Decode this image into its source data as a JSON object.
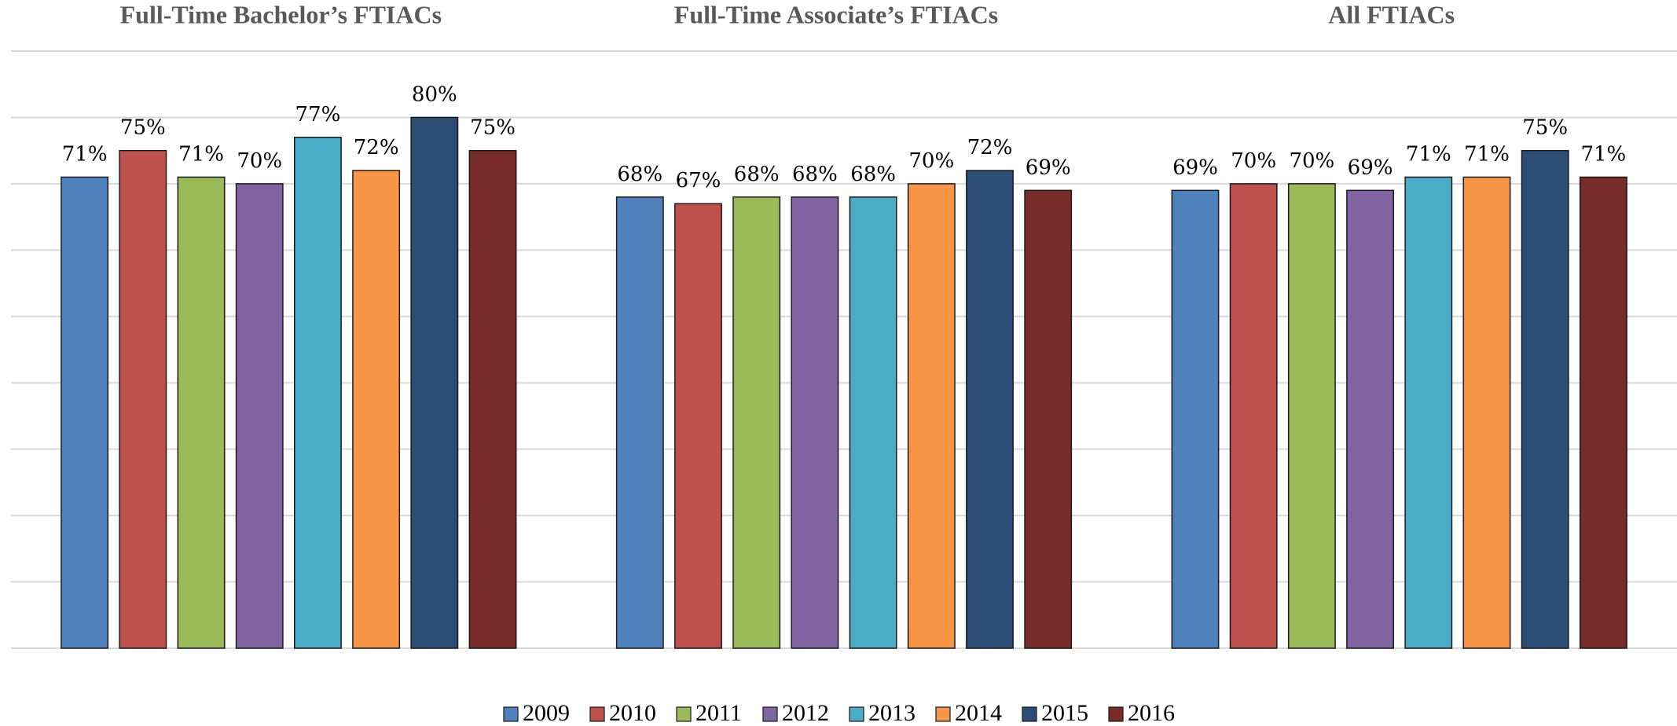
{
  "chart_data": {
    "type": "bar",
    "categories": [
      "Full-Time Bachelor’s FTIACs",
      "Full-Time Associate’s FTIACs",
      "All FTIACs"
    ],
    "series": [
      {
        "name": "2009",
        "color": "#4f81bd",
        "values": [
          71,
          68,
          69
        ],
        "value_labels": [
          "71%",
          "68%",
          "69%"
        ]
      },
      {
        "name": "2010",
        "color": "#c0504d",
        "values": [
          75,
          67,
          70
        ],
        "value_labels": [
          "75%",
          "67%",
          "70%"
        ]
      },
      {
        "name": "2011",
        "color": "#9bbb59",
        "values": [
          71,
          68,
          70
        ],
        "value_labels": [
          "71%",
          "68%",
          "70%"
        ]
      },
      {
        "name": "2012",
        "color": "#8064a2",
        "values": [
          70,
          68,
          69
        ],
        "value_labels": [
          "70%",
          "68%",
          "69%"
        ]
      },
      {
        "name": "2013",
        "color": "#4bacc6",
        "values": [
          77,
          68,
          71
        ],
        "value_labels": [
          "77%",
          "68%",
          "71%"
        ]
      },
      {
        "name": "2014",
        "color": "#f79646",
        "values": [
          72,
          70,
          71
        ],
        "value_labels": [
          "72%",
          "70%",
          "71%"
        ]
      },
      {
        "name": "2015",
        "color": "#2c4d75",
        "values": [
          80,
          72,
          75
        ],
        "value_labels": [
          "80%",
          "72%",
          "75%"
        ]
      },
      {
        "name": "2016",
        "color": "#772c2a",
        "values": [
          75,
          69,
          71
        ],
        "value_labels": [
          "75%",
          "69%",
          "71%"
        ]
      }
    ],
    "ylim": [
      0,
      90
    ],
    "yticks": [
      0,
      10,
      20,
      30,
      40,
      50,
      60,
      70,
      80,
      90
    ],
    "grid": true,
    "legend": "bottom"
  }
}
